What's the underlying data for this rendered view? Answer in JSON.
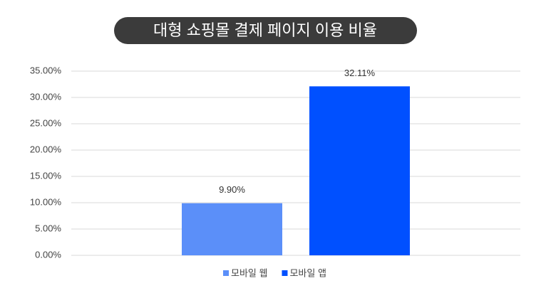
{
  "chart_data": {
    "type": "bar",
    "title": "대형 쇼핑몰 결제 페이지 이용 비율",
    "categories": [
      null
    ],
    "series": [
      {
        "name": "모바일 웹",
        "color": "#5b8ff9",
        "values": [
          9.9
        ],
        "value_labels": [
          "9.90%"
        ]
      },
      {
        "name": "모바일 앱",
        "color": "#0050ff",
        "values": [
          32.11
        ],
        "value_labels": [
          "32.11%"
        ]
      }
    ],
    "ylim": [
      0,
      35
    ],
    "yticks": [
      {
        "value": 0,
        "label": "0.00%"
      },
      {
        "value": 5,
        "label": "5.00%"
      },
      {
        "value": 10,
        "label": "10.00%"
      },
      {
        "value": 15,
        "label": "15.00%"
      },
      {
        "value": 20,
        "label": "20.00%"
      },
      {
        "value": 25,
        "label": "25.00%"
      },
      {
        "value": 30,
        "label": "30.00%"
      },
      {
        "value": 35,
        "label": "35.00%"
      }
    ],
    "grid": true,
    "legend": "bottom"
  }
}
